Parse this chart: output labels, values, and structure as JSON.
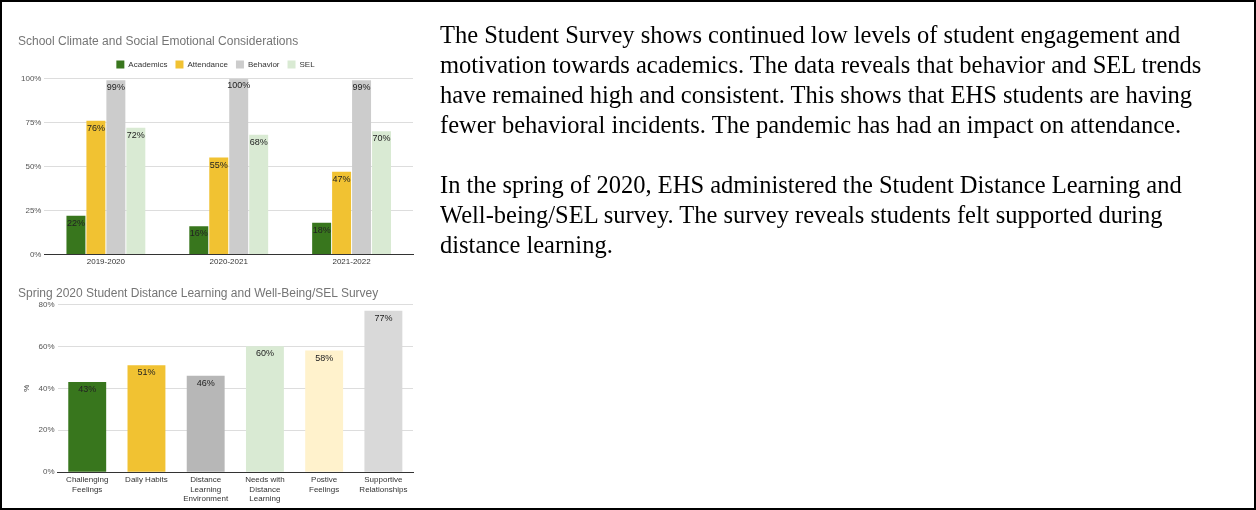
{
  "chart_data": [
    {
      "type": "bar",
      "title": "School Climate and Social Emotional Considerations",
      "categories": [
        "2019-2020",
        "2020-2021",
        "2021-2022"
      ],
      "series": [
        {
          "name": "Academics",
          "color": "#38761d",
          "values": [
            22,
            16,
            18
          ],
          "value_labels": [
            "22%",
            "16%",
            "18%"
          ]
        },
        {
          "name": "Attendance",
          "color": "#f1c232",
          "values": [
            76,
            55,
            47
          ],
          "value_labels": [
            "76%",
            "55%",
            "47%"
          ]
        },
        {
          "name": "Behavior",
          "color": "#cccccc",
          "values": [
            99,
            100,
            99
          ],
          "value_labels": [
            "99%",
            "100%",
            "99%"
          ]
        },
        {
          "name": "SEL",
          "color": "#d9ead3",
          "values": [
            72,
            68,
            70
          ],
          "value_labels": [
            "72%",
            "68%",
            "70%"
          ]
        }
      ],
      "ylim": [
        0,
        100
      ],
      "yticks": [
        {
          "value": 0,
          "label": "0%"
        },
        {
          "value": 25,
          "label": "25%"
        },
        {
          "value": 50,
          "label": "50%"
        },
        {
          "value": 75,
          "label": "75%"
        },
        {
          "value": 100,
          "label": "100%"
        }
      ],
      "grid": "y",
      "legend": "top"
    },
    {
      "type": "bar",
      "title": "Spring 2020 Student Distance Learning and Well-Being/SEL Survey",
      "ylabel": "%",
      "categories": [
        "Challenging Feelings",
        "Daily Habits",
        "Distance Learning Environment",
        "Needs with Distance Learning",
        "Postive Feelings",
        "Supportive Relationships"
      ],
      "values": [
        43,
        51,
        46,
        60,
        58,
        77
      ],
      "value_labels": [
        "43%",
        "51%",
        "46%",
        "60%",
        "58%",
        "77%"
      ],
      "colors": [
        "#38761d",
        "#f1c232",
        "#b7b7b7",
        "#d9ead3",
        "#fff2cc",
        "#d9d9d9"
      ],
      "ylim": [
        0,
        80
      ],
      "yticks": [
        {
          "value": 0,
          "label": "0%"
        },
        {
          "value": 20,
          "label": "20%"
        },
        {
          "value": 40,
          "label": "40%"
        },
        {
          "value": 60,
          "label": "60%"
        },
        {
          "value": 80,
          "label": "80%"
        }
      ],
      "grid": "y"
    },
    {
      "type": "other",
      "annotations": [
        "The Student Survey shows continued low levels of student engagement and motivation towards academics. The data reveals that behavior and SEL trends have remained high and consistent. This shows that EHS students are having fewer behavioral incidents. The pandemic has had an impact on attendance.",
        "In the spring of 2020, EHS administered the Student Distance Learning and Well-being/SEL survey. The survey reveals students felt supported during distance learning."
      ]
    }
  ]
}
